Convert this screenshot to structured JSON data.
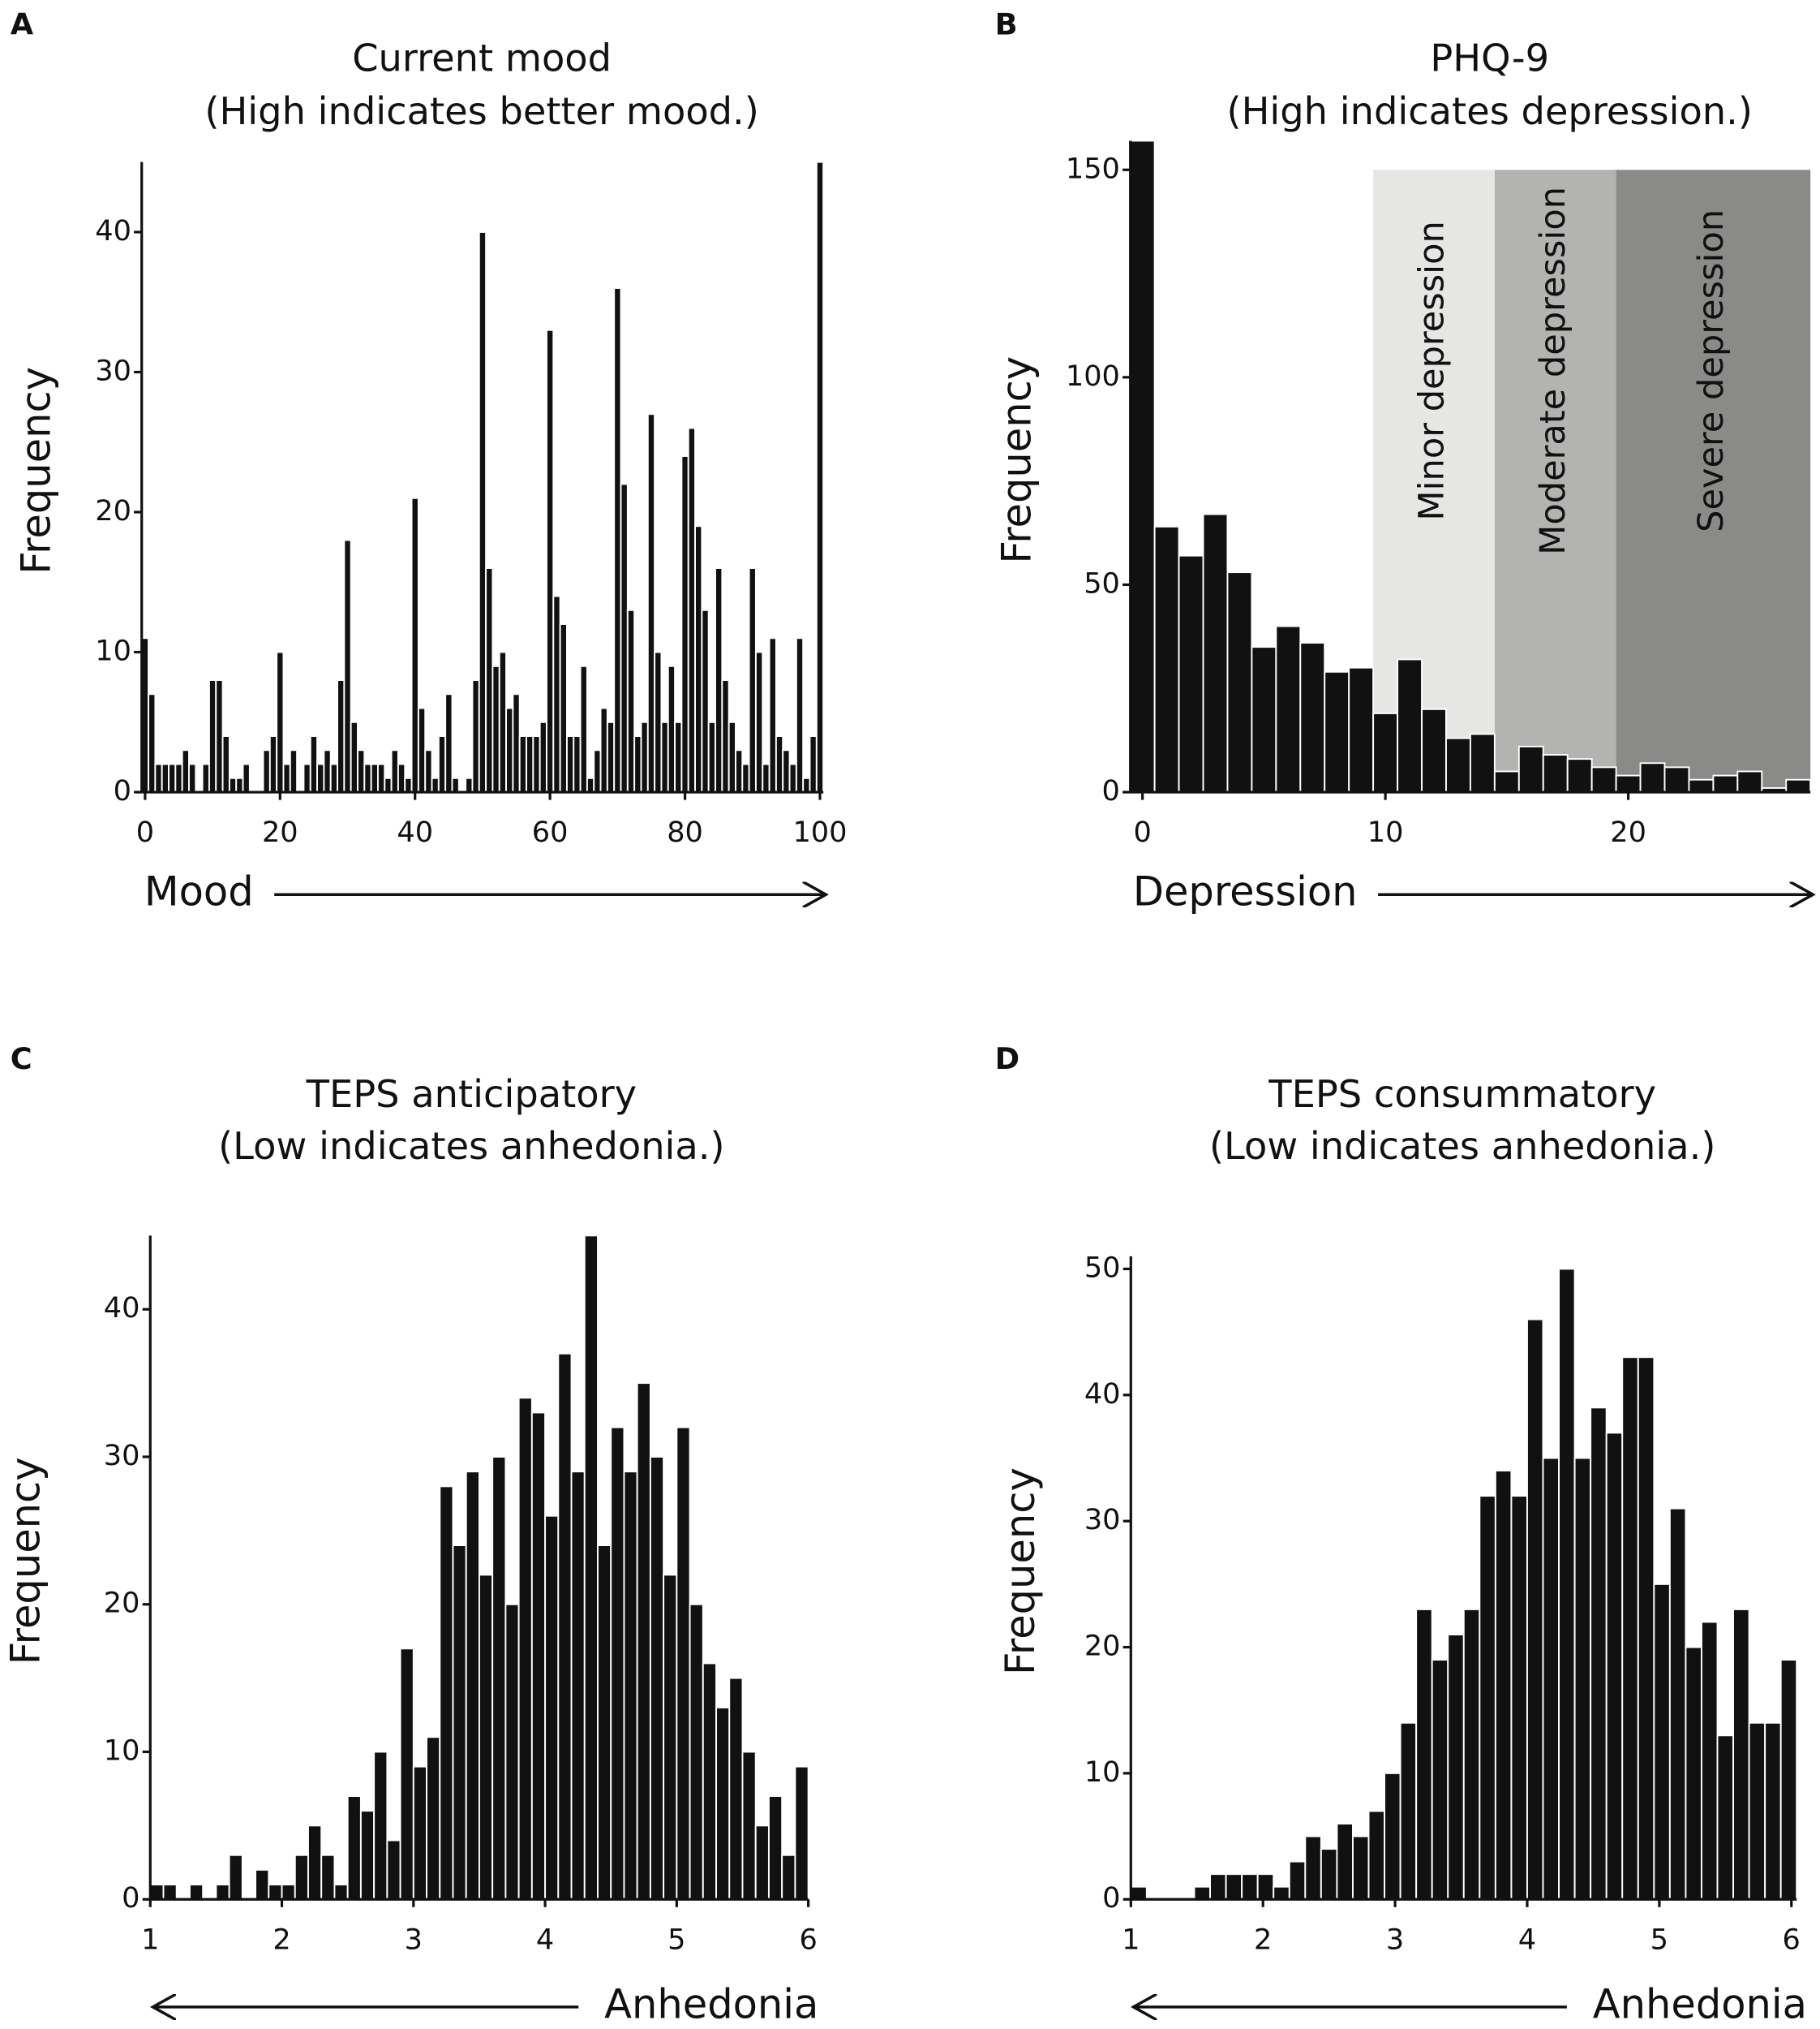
{
  "chart_data": [
    {
      "type": "histogram",
      "panel": "A",
      "title": "Current mood",
      "subtitle": "(High indicates better mood.)",
      "xlabel": "Mood",
      "ylabel": "Frequency",
      "color": "#111111",
      "bins": [
        -0.5,
        0.5,
        1.5,
        2.5,
        3.5,
        4.5,
        5.5,
        6.5,
        7.5,
        8.5,
        9.5,
        10.5,
        11.5,
        12.5,
        13.5,
        14.5,
        15.5,
        16.5,
        17.5,
        18.5,
        19.5,
        20.5,
        21.5,
        22.5,
        23.5,
        24.5,
        25.5,
        26.5,
        27.5,
        28.5,
        29.5,
        30.5,
        31.5,
        32.5,
        33.5,
        34.5,
        35.5,
        36.5,
        37.5,
        38.5,
        39.5,
        40.5,
        41.5,
        42.5,
        43.5,
        44.5,
        45.5,
        46.5,
        47.5,
        48.5,
        49.5,
        50.5,
        51.5,
        52.5,
        53.5,
        54.5,
        55.5,
        56.5,
        57.5,
        58.5,
        59.5,
        60.5,
        61.5,
        62.5,
        63.5,
        64.5,
        65.5,
        66.5,
        67.5,
        68.5,
        69.5,
        70.5,
        71.5,
        72.5,
        73.5,
        74.5,
        75.5,
        76.5,
        77.5,
        78.5,
        79.5,
        80.5,
        81.5,
        82.5,
        83.5,
        84.5,
        85.5,
        86.5,
        87.5,
        88.5,
        89.5,
        90.5,
        91.5,
        92.5,
        93.5,
        94.5,
        95.5,
        96.5,
        97.5,
        98.5,
        99.5,
        100.5
      ],
      "values": [
        11,
        7,
        2,
        2,
        2,
        2,
        3,
        2,
        0,
        2,
        8,
        8,
        4,
        1,
        1,
        2,
        0,
        0,
        3,
        4,
        10,
        2,
        3,
        0,
        2,
        4,
        2,
        3,
        2,
        8,
        18,
        5,
        3,
        2,
        2,
        2,
        1,
        3,
        2,
        1,
        21,
        6,
        3,
        1,
        4,
        7,
        1,
        0,
        1,
        8,
        40,
        16,
        9,
        10,
        6,
        7,
        4,
        4,
        4,
        5,
        33,
        14,
        12,
        4,
        4,
        9,
        1,
        3,
        6,
        5,
        36,
        22,
        13,
        4,
        5,
        27,
        10,
        5,
        9,
        5,
        24,
        26,
        19,
        13,
        5,
        16,
        8,
        5,
        3,
        2,
        16,
        10,
        2,
        11,
        4,
        3,
        2,
        11,
        1,
        4,
        45
      ],
      "xlim": [
        -0.5,
        100.5
      ],
      "xticks": [
        0,
        20,
        40,
        60,
        80,
        100
      ],
      "ylim": [
        0,
        45
      ],
      "yticks": [
        0,
        10,
        20,
        30,
        40
      ],
      "xarrow": "right"
    },
    {
      "type": "histogram",
      "panel": "B",
      "title": "PHQ-9",
      "subtitle": "(High indicates depression.)",
      "xlabel": "Depression",
      "ylabel": "Frequency",
      "color": "#111111",
      "bins": [
        -0.5,
        0.5,
        1.5,
        2.5,
        3.5,
        4.5,
        5.5,
        6.5,
        7.5,
        8.5,
        9.5,
        10.5,
        11.5,
        12.5,
        13.5,
        14.5,
        15.5,
        16.5,
        17.5,
        18.5,
        19.5,
        20.5,
        21.5,
        22.5,
        23.5,
        24.5,
        25.5,
        26.5,
        27.5
      ],
      "values": [
        157,
        64,
        57,
        67,
        53,
        35,
        40,
        36,
        29,
        30,
        19,
        32,
        20,
        13,
        14,
        5,
        11,
        9,
        8,
        6,
        4,
        7,
        6,
        3,
        4,
        5,
        1,
        3
      ],
      "regions": [
        {
          "label": "Minor depression",
          "from": 9.5,
          "to": 14.5,
          "ymax": 150,
          "color": "#e6e7e4"
        },
        {
          "label": "Moderate depression",
          "from": 14.5,
          "to": 19.5,
          "ymax": 150,
          "color": "#b3b3b1"
        },
        {
          "label": "Severe depression",
          "from": 19.5,
          "to": 27.5,
          "ymax": 150,
          "color": "#8a8b88"
        }
      ],
      "xlim": [
        -0.5,
        27.5
      ],
      "xticks": [
        0,
        10,
        20
      ],
      "ylim": [
        0,
        157
      ],
      "yticks": [
        0,
        50,
        100,
        150
      ],
      "xarrow": "right"
    },
    {
      "type": "histogram",
      "panel": "C",
      "title": "TEPS anticipatory",
      "subtitle": "(Low indicates anhedonia.)",
      "xlabel": "Anhedonia",
      "ylabel": "Frequency",
      "color": "#111111",
      "bins": [
        1,
        1.1,
        1.2,
        1.3,
        1.4,
        1.5,
        1.6,
        1.7,
        1.8,
        1.9,
        2,
        2.1,
        2.2,
        2.3,
        2.4,
        2.5,
        2.6,
        2.7,
        2.8,
        2.9,
        3,
        3.1,
        3.2,
        3.3,
        3.4,
        3.5,
        3.6,
        3.7,
        3.8,
        3.9,
        4,
        4.1,
        4.2,
        4.3,
        4.4,
        4.5,
        4.6,
        4.7,
        4.8,
        4.9,
        5,
        5.1,
        5.2,
        5.3,
        5.4,
        5.5,
        5.6,
        5.7,
        5.8,
        5.9,
        6
      ],
      "values": [
        1,
        1,
        0,
        1,
        0,
        1,
        3,
        0,
        2,
        1,
        1,
        3,
        5,
        3,
        1,
        7,
        6,
        10,
        4,
        17,
        9,
        11,
        28,
        24,
        29,
        22,
        30,
        20,
        34,
        33,
        26,
        37,
        29,
        45,
        24,
        32,
        29,
        35,
        30,
        22,
        32,
        20,
        16,
        13,
        15,
        10,
        5,
        7,
        3,
        9
      ],
      "xlim": [
        1,
        6
      ],
      "xticks": [
        1,
        2,
        3,
        4,
        5,
        6
      ],
      "ylim": [
        0,
        45
      ],
      "yticks": [
        0,
        10,
        20,
        30,
        40
      ],
      "xarrow": "left"
    },
    {
      "type": "histogram",
      "panel": "D",
      "title": "TEPS consummatory",
      "subtitle": "(Low indicates anhedonia.)",
      "xlabel": "Anhedonia",
      "ylabel": "Frequency",
      "color": "#111111",
      "bins": [
        1,
        1.12,
        1.24,
        1.36,
        1.48,
        1.6,
        1.72,
        1.84,
        1.96,
        2.08,
        2.2,
        2.32,
        2.44,
        2.56,
        2.68,
        2.8,
        2.92,
        3.04,
        3.16,
        3.28,
        3.4,
        3.52,
        3.64,
        3.76,
        3.88,
        4,
        4.12,
        4.24,
        4.36,
        4.48,
        4.6,
        4.72,
        4.84,
        4.96,
        5.08,
        5.2,
        5.32,
        5.44,
        5.56,
        5.68,
        5.8,
        5.92,
        6.04
      ],
      "values": [
        1,
        0,
        0,
        0,
        1,
        2,
        2,
        2,
        2,
        1,
        3,
        5,
        4,
        6,
        5,
        7,
        10,
        14,
        23,
        19,
        21,
        23,
        32,
        34,
        32,
        46,
        35,
        50,
        35,
        39,
        37,
        43,
        43,
        25,
        31,
        20,
        22,
        13,
        23,
        14,
        14,
        19
      ],
      "xlim": [
        1,
        6.04
      ],
      "xticks": [
        1,
        2,
        3,
        4,
        5,
        6
      ],
      "ylim": [
        0,
        51
      ],
      "yticks": [
        0,
        10,
        20,
        30,
        40,
        50
      ],
      "xarrow": "left"
    }
  ]
}
